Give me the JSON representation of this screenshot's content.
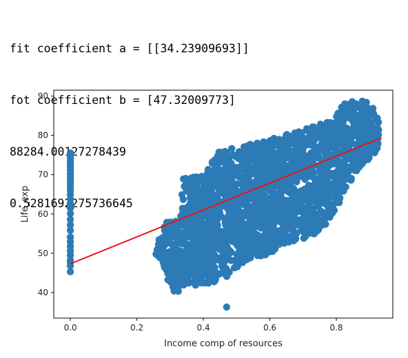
{
  "output": {
    "lines": [
      "fit coefficient a = [[34.23909693]]",
      "fot coefficient b = [47.32009773]",
      "88284.00127278439",
      "0.5281692275736645"
    ]
  },
  "colors": {
    "scatter": "#2c7bb6",
    "fit_line": "#ee1111",
    "axes": "#000000"
  },
  "chart_data": {
    "type": "scatter",
    "title": "",
    "xlabel": "Income comp of resources",
    "ylabel": "Life_exp",
    "xlim": [
      -0.05,
      0.97
    ],
    "ylim": [
      33.5,
      91.5
    ],
    "xticks": [
      0.0,
      0.2,
      0.4,
      0.6,
      0.8
    ],
    "xtick_labels": [
      "0.0",
      "0.2",
      "0.4",
      "0.6",
      "0.8"
    ],
    "yticks": [
      40,
      50,
      60,
      70,
      80,
      90
    ],
    "ytick_labels": [
      "40",
      "50",
      "60",
      "70",
      "80",
      "90"
    ],
    "grid": false,
    "fit_line": {
      "slope": 34.23909693,
      "intercept": 47.32009773,
      "x_range": [
        0.0,
        0.934
      ]
    },
    "zero_income_cluster": {
      "x": 0.0,
      "y": [
        45.3,
        46.8,
        47.6,
        48.2,
        49.5,
        50.6,
        51.7,
        52.9,
        54.1,
        55.8,
        57.2,
        58.6,
        60.1,
        61.5,
        62.7,
        63.8,
        64.9,
        65.9,
        66.8,
        67.7,
        68.6,
        69.4,
        70.2,
        71.1,
        71.9,
        72.7,
        73.5,
        74.2,
        74.9,
        75.5
      ]
    },
    "main_cloud": {
      "outer_envelope": [
        [
          0.255,
          49.8
        ],
        [
          0.28,
          58
        ],
        [
          0.33,
          59.2
        ],
        [
          0.34,
          69.2
        ],
        [
          0.4,
          70.5
        ],
        [
          0.45,
          76.5
        ],
        [
          0.5,
          76.8
        ],
        [
          0.55,
          78
        ],
        [
          0.6,
          79
        ],
        [
          0.66,
          80.5
        ],
        [
          0.72,
          82
        ],
        [
          0.78,
          84
        ],
        [
          0.83,
          88.5
        ],
        [
          0.865,
          89
        ],
        [
          0.905,
          88.3
        ],
        [
          0.935,
          82.3
        ],
        [
          0.92,
          75.5
        ],
        [
          0.88,
          72.5
        ],
        [
          0.83,
          67
        ],
        [
          0.8,
          61
        ],
        [
          0.77,
          57
        ],
        [
          0.72,
          54
        ],
        [
          0.65,
          52.5
        ],
        [
          0.6,
          49.6
        ],
        [
          0.55,
          49
        ],
        [
          0.52,
          47.5
        ],
        [
          0.48,
          44.3
        ],
        [
          0.44,
          42.7
        ],
        [
          0.4,
          41.5
        ],
        [
          0.35,
          42
        ],
        [
          0.315,
          38.9
        ],
        [
          0.3,
          41.7
        ],
        [
          0.275,
          47.2
        ]
      ],
      "outliers": [
        [
          0.47,
          36.3
        ],
        [
          0.39,
          48.8
        ],
        [
          0.315,
          41.3
        ],
        [
          0.7,
          57.5
        ],
        [
          0.78,
          64.2
        ],
        [
          0.56,
          70.1
        ],
        [
          0.465,
          75.9
        ],
        [
          0.545,
          76.3
        ]
      ]
    }
  }
}
